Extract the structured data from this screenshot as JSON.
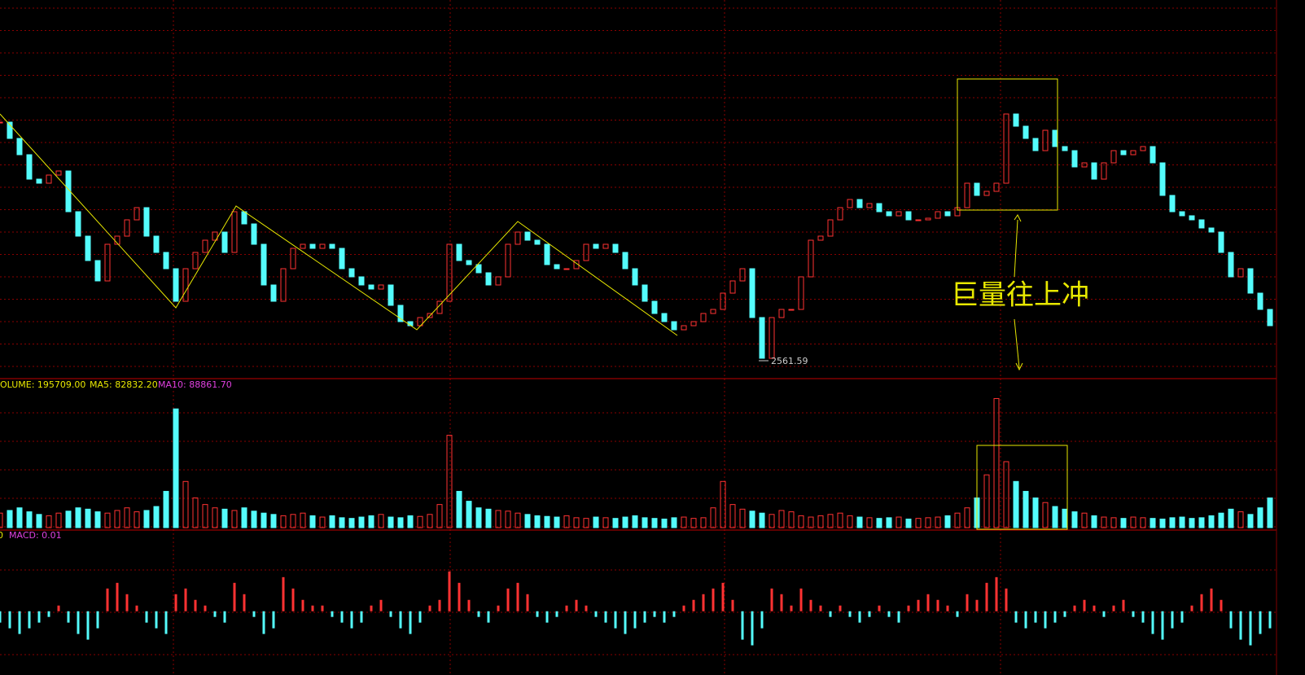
{
  "chart_data": {
    "type": "candlestick",
    "low_label": "2561.59",
    "annotation": "巨量往上冲",
    "ylim": [
      2532,
      3422
    ],
    "closes": [
      3142,
      3102,
      3062,
      3002,
      2992,
      3012,
      3022,
      2922,
      2862,
      2802,
      2752,
      2842,
      2862,
      2902,
      2932,
      2862,
      2822,
      2782,
      2702,
      2782,
      2822,
      2852,
      2872,
      2822,
      2922,
      2892,
      2842,
      2742,
      2702,
      2782,
      2832,
      2842,
      2832,
      2842,
      2832,
      2782,
      2762,
      2742,
      2732,
      2742,
      2692,
      2652,
      2642,
      2662,
      2672,
      2702,
      2842,
      2802,
      2792,
      2772,
      2742,
      2762,
      2842,
      2872,
      2852,
      2842,
      2792,
      2782,
      2782,
      2802,
      2842,
      2832,
      2842,
      2822,
      2782,
      2742,
      2702,
      2672,
      2652,
      2632,
      2642,
      2652,
      2672,
      2682,
      2722,
      2752,
      2782,
      2662,
      2562,
      2662,
      2682,
      2682,
      2762,
      2852,
      2862,
      2902,
      2932,
      2952,
      2932,
      2942,
      2922,
      2912,
      2922,
      2902,
      2902,
      2906,
      2922,
      2912,
      2932,
      2992,
      2962,
      2972,
      2992,
      3162,
      3132,
      3102,
      3072,
      3122,
      3082,
      3072,
      3032,
      3042,
      3002,
      3042,
      3072,
      3062,
      3072,
      3082,
      3042,
      2962,
      2922,
      2912,
      2902,
      2882,
      2872,
      2822,
      2762,
      2782,
      2722,
      2682,
      2642
    ],
    "volume": {
      "label": "OLUME: 195709.00",
      "ma5_label": "MA5: 82832.20",
      "ma10_label": "MA10: 88861.70",
      "ylim": [
        0,
        200000
      ],
      "values": [
        22000,
        26000,
        30000,
        24000,
        20000,
        18000,
        22000,
        25000,
        30000,
        28000,
        24000,
        22000,
        26000,
        30000,
        24000,
        26000,
        32000,
        55000,
        180000,
        70000,
        45000,
        35000,
        30000,
        28000,
        26000,
        30000,
        25000,
        22000,
        20000,
        18000,
        20000,
        22000,
        18000,
        16000,
        18000,
        15000,
        14000,
        16000,
        18000,
        20000,
        16000,
        15000,
        18000,
        17000,
        20000,
        35000,
        140000,
        55000,
        40000,
        30000,
        28000,
        26000,
        25000,
        22000,
        20000,
        18000,
        17000,
        16000,
        18000,
        15000,
        14000,
        16000,
        15000,
        14000,
        16000,
        18000,
        15000,
        14000,
        13000,
        15000,
        16000,
        14000,
        15000,
        30000,
        70000,
        35000,
        28000,
        25000,
        22000,
        20000,
        26000,
        24000,
        18000,
        16000,
        18000,
        20000,
        22000,
        18000,
        16000,
        15000,
        14000,
        15000,
        16000,
        13000,
        14000,
        15000,
        16000,
        18000,
        22000,
        30000,
        45000,
        80000,
        195709,
        100000,
        70000,
        55000,
        45000,
        38000,
        32000,
        28000,
        24000,
        22000,
        18000,
        16000,
        15000,
        14000,
        16000,
        15000,
        14000,
        13000,
        15000,
        16000,
        14000,
        15000,
        18000,
        22000,
        28000,
        24000,
        20000,
        30000,
        45000
      ]
    },
    "macd": {
      "left_label": "0",
      "label": "MACD: 0.01",
      "ylim": [
        -0.085,
        0.13
      ],
      "values": [
        -0.02,
        -0.03,
        -0.04,
        -0.03,
        -0.02,
        -0.01,
        0.01,
        -0.02,
        -0.04,
        -0.05,
        -0.03,
        0.04,
        0.05,
        0.03,
        0.01,
        -0.02,
        -0.03,
        -0.04,
        0.03,
        0.04,
        0.02,
        0.01,
        -0.01,
        -0.02,
        0.05,
        0.03,
        -0.01,
        -0.04,
        -0.03,
        0.06,
        0.04,
        0.02,
        0.01,
        0.01,
        -0.01,
        -0.02,
        -0.03,
        -0.02,
        0.01,
        0.02,
        -0.01,
        -0.03,
        -0.04,
        -0.02,
        0.01,
        0.02,
        0.07,
        0.05,
        0.02,
        -0.01,
        -0.02,
        0.01,
        0.04,
        0.05,
        0.03,
        -0.01,
        -0.02,
        -0.01,
        0.01,
        0.02,
        0.01,
        -0.01,
        -0.02,
        -0.03,
        -0.04,
        -0.03,
        -0.02,
        -0.01,
        -0.02,
        -0.01,
        0.01,
        0.02,
        0.03,
        0.04,
        0.05,
        0.02,
        -0.05,
        -0.06,
        -0.03,
        0.04,
        0.03,
        0.01,
        0.04,
        0.02,
        0.01,
        -0.01,
        0.01,
        -0.01,
        -0.02,
        -0.01,
        0.01,
        -0.01,
        -0.02,
        0.01,
        0.02,
        0.03,
        0.02,
        0.01,
        -0.01,
        0.03,
        0.02,
        0.05,
        0.06,
        0.04,
        -0.02,
        -0.03,
        -0.02,
        -0.03,
        -0.02,
        -0.01,
        0.01,
        0.02,
        0.01,
        -0.01,
        0.01,
        0.02,
        -0.01,
        -0.02,
        -0.04,
        -0.05,
        -0.03,
        -0.02,
        0.01,
        0.03,
        0.04,
        0.02,
        -0.03,
        -0.05,
        -0.06,
        -0.04,
        -0.03
      ]
    }
  }
}
